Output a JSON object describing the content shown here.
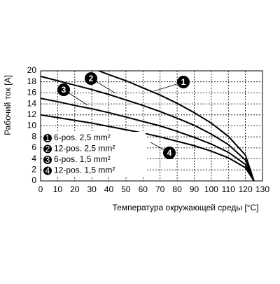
{
  "chart_data": {
    "type": "line",
    "xlabel": "Температура окружающей среды [°C]",
    "ylabel": "Рабочий ток [A]",
    "xlim": [
      0,
      130
    ],
    "xticks": [
      0,
      10,
      20,
      30,
      40,
      50,
      60,
      70,
      80,
      90,
      100,
      110,
      120,
      130
    ],
    "ylim": [
      0,
      20
    ],
    "yticks": [
      0,
      2,
      4,
      6,
      8,
      10,
      12,
      14,
      16,
      18,
      20
    ],
    "grid": true,
    "series": [
      {
        "label": "1",
        "name": "6-pos. 2,5 mm²",
        "color": "#000000",
        "x": [
          34,
          40,
          50,
          60,
          70,
          80,
          90,
          100,
          110,
          120,
          125
        ],
        "values": [
          20.0,
          19.3,
          18.2,
          16.9,
          15.6,
          14.1,
          12.4,
          10.5,
          8.1,
          4.7,
          0
        ]
      },
      {
        "label": "2",
        "name": "12-pos. 2,5 mm²",
        "color": "#000000",
        "x": [
          0,
          10,
          20,
          30,
          40,
          50,
          60,
          70,
          80,
          90,
          100,
          110,
          120,
          125
        ],
        "values": [
          19.0,
          18.2,
          17.4,
          16.6,
          15.7,
          14.7,
          13.7,
          12.6,
          11.4,
          10.1,
          8.5,
          6.6,
          3.8,
          0
        ]
      },
      {
        "label": "3",
        "name": "6-pos. 1,5 mm²",
        "color": "#000000",
        "x": [
          0,
          10,
          20,
          30,
          40,
          50,
          60,
          70,
          80,
          90,
          100,
          110,
          120,
          125
        ],
        "values": [
          15.0,
          14.4,
          13.7,
          13.1,
          12.4,
          11.6,
          10.8,
          10.0,
          9.0,
          7.9,
          6.7,
          5.2,
          3.0,
          0
        ]
      },
      {
        "label": "4",
        "name": "12-pos. 1,5 mm²",
        "color": "#000000",
        "x": [
          0,
          10,
          20,
          30,
          40,
          50,
          60,
          70,
          80,
          90,
          100,
          110,
          120,
          125
        ],
        "values": [
          12.0,
          11.5,
          11.0,
          10.5,
          9.9,
          9.3,
          8.7,
          8.0,
          7.2,
          6.4,
          5.4,
          4.2,
          2.4,
          0
        ]
      }
    ]
  }
}
